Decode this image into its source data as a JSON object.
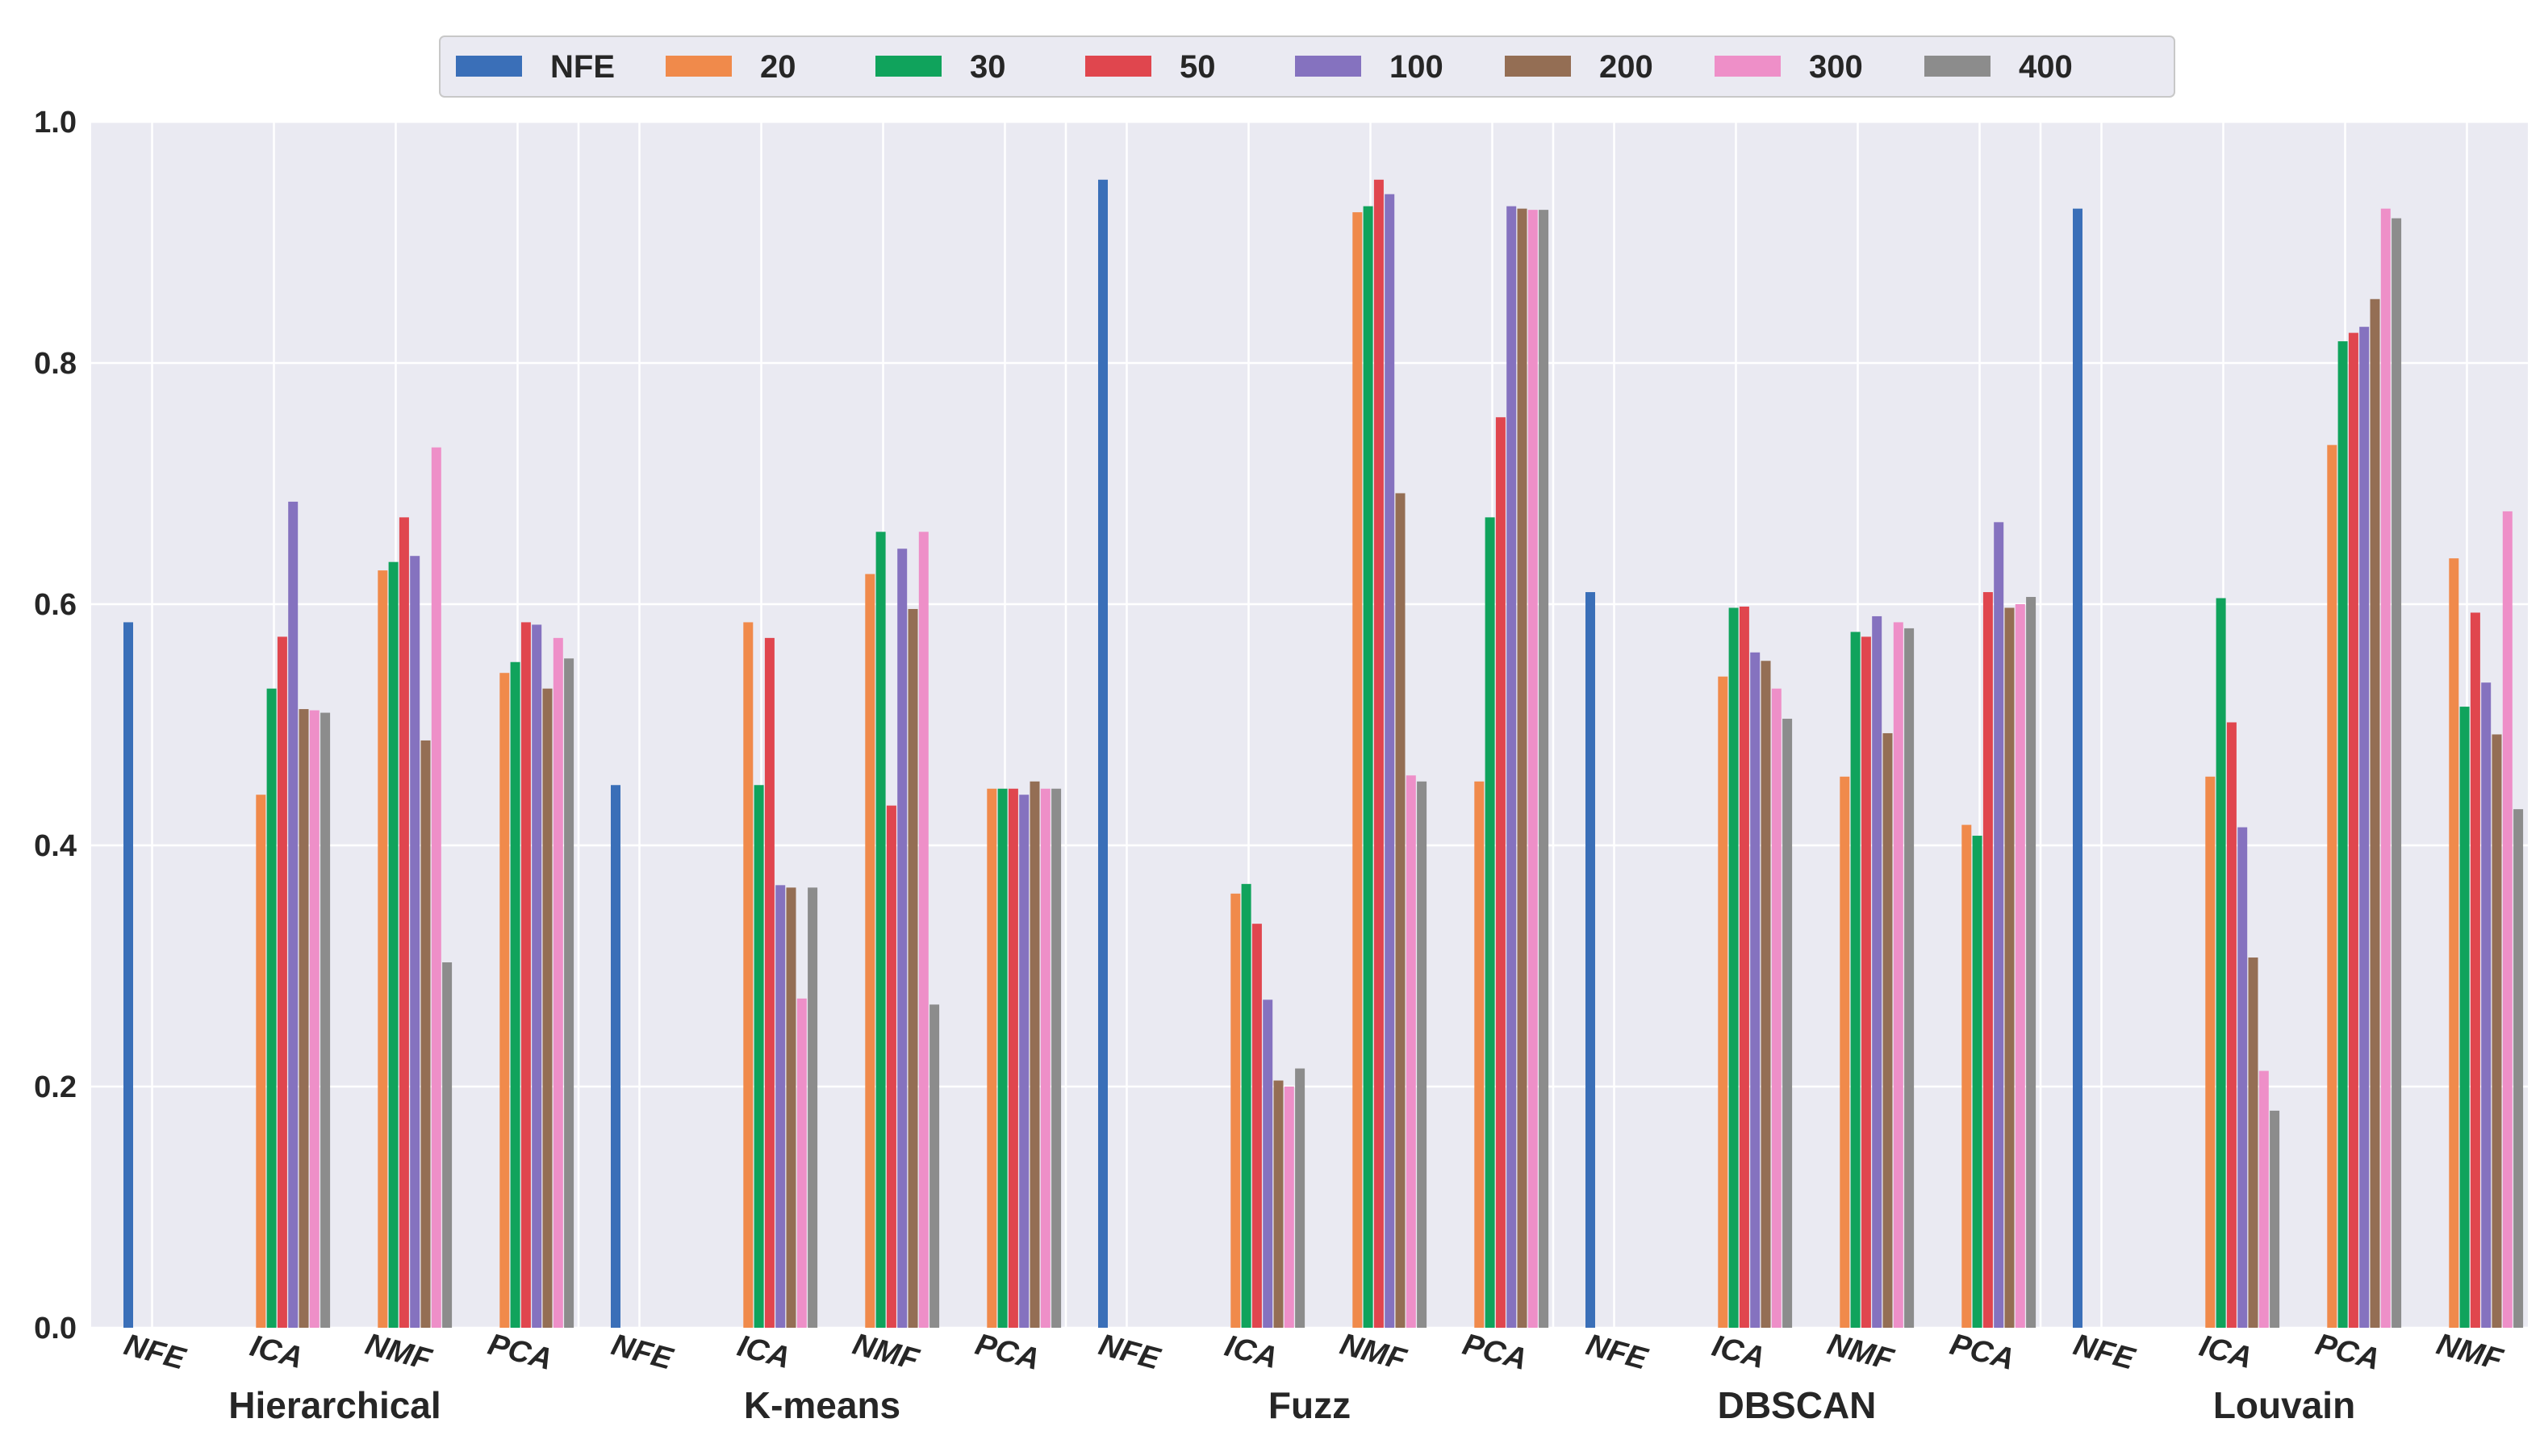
{
  "chart_data": {
    "type": "bar",
    "title": "",
    "xlabel": "",
    "ylabel": "",
    "ylim": [
      0,
      1.0
    ],
    "yticks": [
      "0.0",
      "0.2",
      "0.4",
      "0.6",
      "0.8",
      "1.0"
    ],
    "grid": true,
    "legend_position": "top-center",
    "series": [
      {
        "name": "NFE",
        "color": "#3a6fb8"
      },
      {
        "name": "20",
        "color": "#f08a4b"
      },
      {
        "name": "30",
        "color": "#10a35c"
      },
      {
        "name": "50",
        "color": "#e0464e"
      },
      {
        "name": "100",
        "color": "#8572bf"
      },
      {
        "name": "200",
        "color": "#946e54"
      },
      {
        "name": "300",
        "color": "#ee8fc8"
      },
      {
        "name": "400",
        "color": "#8c8c8c"
      }
    ],
    "groups": [
      {
        "name": "Hierarchical",
        "categories": [
          {
            "label": "NFE",
            "values": [
              0.585,
              null,
              null,
              null,
              null,
              null,
              null,
              null
            ]
          },
          {
            "label": "ICA",
            "values": [
              null,
              0.442,
              0.53,
              0.573,
              0.685,
              0.513,
              0.512,
              0.51
            ]
          },
          {
            "label": "NMF",
            "values": [
              null,
              0.628,
              0.635,
              0.672,
              0.64,
              0.487,
              0.73,
              0.303
            ]
          },
          {
            "label": "PCA",
            "values": [
              null,
              0.543,
              0.552,
              0.585,
              0.583,
              0.53,
              0.572,
              0.555
            ]
          }
        ]
      },
      {
        "name": "K-means",
        "categories": [
          {
            "label": "NFE",
            "values": [
              0.45,
              null,
              null,
              null,
              null,
              null,
              null,
              null
            ]
          },
          {
            "label": "ICA",
            "values": [
              null,
              0.585,
              0.45,
              0.572,
              0.367,
              0.365,
              0.273,
              0.365
            ]
          },
          {
            "label": "NMF",
            "values": [
              null,
              0.625,
              0.66,
              0.433,
              0.646,
              0.596,
              0.66,
              0.268
            ]
          },
          {
            "label": "PCA",
            "values": [
              null,
              0.447,
              0.447,
              0.447,
              0.442,
              0.453,
              0.447,
              0.447
            ]
          }
        ]
      },
      {
        "name": "Fuzz",
        "categories": [
          {
            "label": "NFE",
            "values": [
              0.952,
              null,
              null,
              null,
              null,
              null,
              null,
              null
            ]
          },
          {
            "label": "ICA",
            "values": [
              null,
              0.36,
              0.368,
              0.335,
              0.272,
              0.205,
              0.2,
              0.215
            ]
          },
          {
            "label": "NMF",
            "values": [
              null,
              0.925,
              0.93,
              0.952,
              0.94,
              0.692,
              0.458,
              0.453
            ]
          },
          {
            "label": "PCA",
            "values": [
              null,
              0.453,
              0.672,
              0.755,
              0.93,
              0.928,
              0.927,
              0.927
            ]
          }
        ]
      },
      {
        "name": "DBSCAN",
        "categories": [
          {
            "label": "NFE",
            "values": [
              0.61,
              null,
              null,
              null,
              null,
              null,
              null,
              null
            ]
          },
          {
            "label": "ICA",
            "values": [
              null,
              0.54,
              0.597,
              0.598,
              0.56,
              0.553,
              0.53,
              0.505
            ]
          },
          {
            "label": "NMF",
            "values": [
              null,
              0.457,
              0.577,
              0.573,
              0.59,
              0.493,
              0.585,
              0.58
            ]
          },
          {
            "label": "PCA",
            "values": [
              null,
              0.417,
              0.408,
              0.61,
              0.668,
              0.597,
              0.6,
              0.606
            ]
          }
        ]
      },
      {
        "name": "Louvain",
        "categories": [
          {
            "label": "NFE",
            "values": [
              0.928,
              null,
              null,
              null,
              null,
              null,
              null,
              null
            ]
          },
          {
            "label": "ICA",
            "values": [
              null,
              0.457,
              0.605,
              0.502,
              0.415,
              0.307,
              0.213,
              0.18
            ]
          },
          {
            "label": "PCA",
            "values": [
              null,
              0.732,
              0.818,
              0.825,
              0.83,
              0.853,
              0.928,
              0.92
            ]
          },
          {
            "label": "NMF",
            "values": [
              null,
              0.638,
              0.515,
              0.593,
              0.535,
              0.492,
              0.677,
              0.43
            ]
          }
        ]
      }
    ]
  }
}
